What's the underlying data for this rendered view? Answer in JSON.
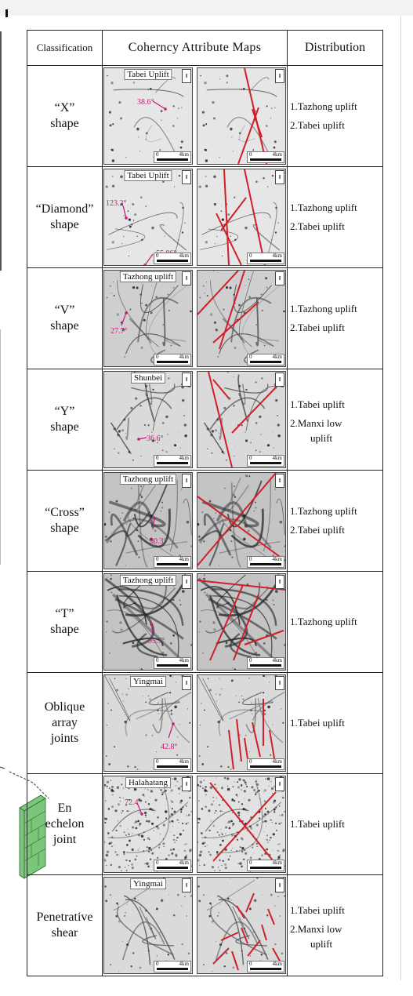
{
  "header": {
    "classification": "Classification",
    "maps": "Coherncy Attribute Maps",
    "distribution": "Distribution"
  },
  "rows": [
    {
      "class_lines": [
        "“X”",
        "shape"
      ],
      "location": "Tabei Uplift",
      "angles": [
        "38.6°"
      ],
      "distribution": [
        "1.Tazhong uplift",
        "2.Tabei uplift"
      ],
      "scale_zero": "0",
      "scale_km": "4km"
    },
    {
      "class_lines": [
        "“Diamond”",
        "shape"
      ],
      "location": "Tabei Uplift",
      "angles": [
        "123.2°",
        "55.86°"
      ],
      "distribution": [
        "1.Tazhong uplift",
        "2.Tabei uplift"
      ],
      "scale_zero": "0",
      "scale_km": "4km"
    },
    {
      "class_lines": [
        "“V”",
        "shape"
      ],
      "location": "Tazhong uplift",
      "angles": [
        "27.7°"
      ],
      "distribution": [
        "1.Tazhong uplift",
        "2.Tabei uplift"
      ],
      "scale_zero": "0",
      "scale_km": "4km"
    },
    {
      "class_lines": [
        "“Y”",
        "shape"
      ],
      "location": "Shunbei",
      "angles": [
        "36.6°"
      ],
      "distribution": [
        "1.Tabei uplift",
        "2.Manxi low",
        "uplift"
      ],
      "scale_zero": "0",
      "scale_km": "4km"
    },
    {
      "class_lines": [
        "“Cross”",
        "shape"
      ],
      "location": "Tazhong uplift",
      "angles": [
        "90.3°"
      ],
      "distribution": [
        "1.Tazhong uplift",
        "2.Tabei uplift"
      ],
      "scale_zero": "0",
      "scale_km": "4km"
    },
    {
      "class_lines": [
        "“T”",
        "shape"
      ],
      "location": "Tazhong uplift",
      "angles": [
        "95.7°"
      ],
      "distribution": [
        "1.Tazhong uplift"
      ],
      "scale_zero": "0",
      "scale_km": "4km"
    },
    {
      "class_lines": [
        "Oblique",
        "array",
        "joints"
      ],
      "location": "Yingmai",
      "angles": [
        "42.8°"
      ],
      "distribution": [
        "1.Tabei uplift"
      ],
      "scale_zero": "0",
      "scale_km": "4km"
    },
    {
      "class_lines": [
        "En",
        "echelon",
        "joint"
      ],
      "location": "Halahatang",
      "angles": [
        "72.4°"
      ],
      "distribution": [
        "1.Tabei uplift"
      ],
      "scale_zero": "0",
      "scale_km": "4km"
    },
    {
      "class_lines": [
        "Penetrative",
        "shear"
      ],
      "location": "Yingmai",
      "angles": [],
      "distribution": [
        "1.Tabei uplift",
        "2.Manxi low",
        "uplift"
      ],
      "scale_zero": "0",
      "scale_km": "4km"
    }
  ],
  "colors": {
    "fault_line": "#d11f2a",
    "angle_label": "#c8177a"
  }
}
